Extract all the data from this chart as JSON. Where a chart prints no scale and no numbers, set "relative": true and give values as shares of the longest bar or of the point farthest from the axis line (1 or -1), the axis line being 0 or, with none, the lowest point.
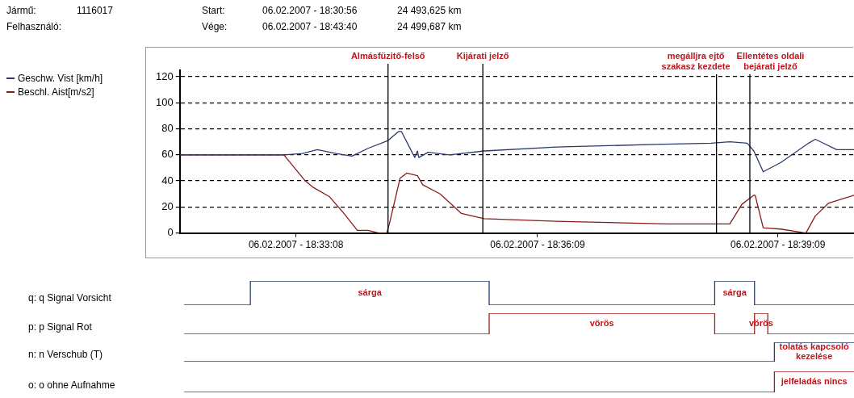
{
  "chart_data": [
    {
      "type": "line",
      "annotations": [
        "Jármű:",
        "1116017",
        "Start:",
        "06.02.2007 - 18:30:56",
        "24 493,625 km",
        "Felhasználó:",
        "Vége:",
        "06.02.2007 - 18:43:40",
        "24 499,687 km"
      ],
      "legend": "left",
      "grid": "y",
      "xlim": [
        "2007-02-06T18:31:41",
        "2007-02-06T18:40:06"
      ],
      "xticks": [
        {
          "value": "2007-02-06T18:33:08",
          "label": "06.02.2007 - 18:33:08"
        },
        {
          "value": "2007-02-06T18:36:09",
          "label": "06.02.2007 - 18:36:09"
        },
        {
          "value": "2007-02-06T18:39:09",
          "label": "06.02.2007 - 18:39:09"
        }
      ],
      "ylim": [
        0,
        125
      ],
      "yticks": [
        0,
        20,
        40,
        60,
        80,
        100,
        120
      ],
      "series": [
        {
          "name": "Geschw. Vist [km/h]",
          "color": "#2b3a6b",
          "x": [
            "2007-02-06T18:31:41",
            "2007-02-06T18:32:59",
            "2007-02-06T18:33:13",
            "2007-02-06T18:33:24",
            "2007-02-06T18:33:38",
            "2007-02-06T18:33:50",
            "2007-02-06T18:34:02",
            "2007-02-06T18:34:17",
            "2007-02-06T18:34:25",
            "2007-02-06T18:34:27",
            "2007-02-06T18:34:33",
            "2007-02-06T18:34:37",
            "2007-02-06T18:34:39",
            "2007-02-06T18:34:40",
            "2007-02-06T18:34:47",
            "2007-02-06T18:35:03",
            "2007-02-06T18:35:29",
            "2007-02-06T18:36:23",
            "2007-02-06T18:37:37",
            "2007-02-06T18:38:19",
            "2007-02-06T18:38:33",
            "2007-02-06T18:38:46",
            "2007-02-06T18:38:51",
            "2007-02-06T18:38:58",
            "2007-02-06T18:39:11",
            "2007-02-06T18:39:32",
            "2007-02-06T18:39:37",
            "2007-02-06T18:39:53",
            "2007-02-06T18:40:06"
          ],
          "values": [
            60,
            60,
            61,
            64,
            61,
            59,
            65,
            71,
            78,
            78,
            66,
            58,
            63,
            58,
            62,
            60,
            63,
            66,
            68,
            69,
            70,
            69,
            63,
            47,
            54,
            69,
            72,
            64,
            64
          ]
        },
        {
          "name": "Beschl. Aist[m/s2]",
          "color": "#8b1a1a",
          "x": [
            "2007-02-06T18:31:41",
            "2007-02-06T18:32:59",
            "2007-02-06T18:33:15",
            "2007-02-06T18:33:21",
            "2007-02-06T18:33:33",
            "2007-02-06T18:33:44",
            "2007-02-06T18:33:54",
            "2007-02-06T18:34:02",
            "2007-02-06T18:34:10",
            "2007-02-06T18:34:16",
            "2007-02-06T18:34:18",
            "2007-02-06T18:34:26",
            "2007-02-06T18:34:31",
            "2007-02-06T18:34:39",
            "2007-02-06T18:34:43",
            "2007-02-06T18:34:56",
            "2007-02-06T18:35:12",
            "2007-02-06T18:35:29",
            "2007-02-06T18:36:23",
            "2007-02-06T18:37:47",
            "2007-02-06T18:38:33",
            "2007-02-06T18:38:42",
            "2007-02-06T18:38:51",
            "2007-02-06T18:38:52",
            "2007-02-06T18:38:58",
            "2007-02-06T18:39:11",
            "2007-02-06T18:39:30",
            "2007-02-06T18:39:37",
            "2007-02-06T18:39:47",
            "2007-02-06T18:40:06"
          ],
          "values": [
            60,
            60,
            40,
            35,
            28,
            15,
            2,
            2,
            0,
            0,
            7,
            42,
            46,
            44,
            37,
            30,
            15,
            11,
            9,
            7,
            7,
            22,
            29,
            29,
            4,
            3,
            0,
            13,
            23,
            29
          ]
        }
      ],
      "ref_lines": [
        {
          "axis": "x",
          "value": "2007-02-06T18:34:17",
          "label": "Almásfüzitő-felső",
          "color": "#000000"
        },
        {
          "axis": "x",
          "value": "2007-02-06T18:35:28",
          "label": "Kijárati jelző",
          "color": "#000000"
        },
        {
          "axis": "x",
          "value": "2007-02-06T18:38:23",
          "label": "megálljra ejtő szakasz kezdete",
          "color": "#000000"
        },
        {
          "axis": "x",
          "value": "2007-02-06T18:38:48",
          "label": "Ellentétes oldali bejárati jelző",
          "color": "#000000"
        }
      ]
    },
    {
      "type": "step",
      "ylabel": "q: q Signal Vorsicht",
      "relative": true,
      "categories": [
        null,
        null,
        null,
        null,
        null,
        null,
        null,
        null,
        null,
        null,
        null,
        null,
        null,
        null,
        null,
        null,
        null,
        null,
        null,
        null,
        null,
        null,
        null,
        null,
        null,
        null,
        null,
        null,
        null,
        null,
        null,
        null,
        null,
        null,
        null,
        null,
        null,
        null,
        null,
        null,
        null,
        null,
        null,
        null,
        null,
        null,
        null,
        null,
        null,
        null,
        null,
        null,
        null,
        null,
        null,
        null,
        null,
        null,
        null,
        null,
        null,
        null,
        null,
        null,
        null,
        null,
        null,
        null,
        null,
        null,
        null,
        null,
        null,
        null,
        null,
        null,
        null,
        null,
        null,
        null,
        null,
        null,
        null,
        null,
        null,
        null,
        null,
        null,
        null,
        null,
        null,
        null,
        null,
        null,
        null,
        null,
        null,
        null,
        null,
        null,
        null,
        null
      ],
      "series": [
        {
          "color": "#2a3c6e",
          "values": [
            0,
            0,
            0,
            0,
            0,
            0,
            0,
            0,
            0,
            0,
            1,
            1,
            1,
            1,
            1,
            1,
            1,
            1,
            1,
            1,
            1,
            1,
            1,
            1,
            1,
            1,
            1,
            1,
            1,
            1,
            1,
            1,
            1,
            1,
            1,
            1,
            1,
            1,
            1,
            1,
            1,
            1,
            1,
            1,
            1,
            1,
            0,
            0,
            0,
            0,
            0,
            0,
            0,
            0,
            0,
            0,
            0,
            0,
            0,
            0,
            0,
            0,
            0,
            0,
            0,
            0,
            0,
            0,
            0,
            0,
            0,
            0,
            0,
            0,
            0,
            0,
            0,
            0,
            0,
            0,
            1,
            1,
            1,
            1,
            1,
            1,
            0,
            0,
            0,
            0,
            0,
            0,
            0,
            0,
            0,
            0,
            0,
            0,
            0,
            0,
            0,
            0
          ]
        }
      ],
      "annotations": [
        "sárga",
        "sárga"
      ]
    },
    {
      "type": "step",
      "ylabel": "p: p Signal Rot",
      "relative": true,
      "categories": [
        null,
        null,
        null,
        null,
        null,
        null,
        null,
        null,
        null,
        null,
        null,
        null,
        null,
        null,
        null,
        null,
        null,
        null,
        null,
        null,
        null,
        null,
        null,
        null,
        null,
        null,
        null,
        null,
        null,
        null,
        null,
        null,
        null,
        null,
        null,
        null,
        null,
        null,
        null,
        null,
        null,
        null,
        null,
        null,
        null,
        null,
        null,
        null,
        null,
        null,
        null,
        null,
        null,
        null,
        null,
        null,
        null,
        null,
        null,
        null,
        null,
        null,
        null,
        null,
        null,
        null,
        null,
        null,
        null,
        null,
        null,
        null,
        null,
        null,
        null,
        null,
        null,
        null,
        null,
        null,
        null,
        null,
        null,
        null,
        null,
        null,
        null,
        null,
        null,
        null,
        null,
        null,
        null,
        null,
        null,
        null,
        null,
        null,
        null,
        null,
        null,
        null
      ],
      "series": [
        {
          "color": "#a02020",
          "values": [
            0,
            0,
            0,
            0,
            0,
            0,
            0,
            0,
            0,
            0,
            0,
            0,
            0,
            0,
            0,
            0,
            0,
            0,
            0,
            0,
            0,
            0,
            0,
            0,
            0,
            0,
            0,
            0,
            0,
            0,
            0,
            0,
            0,
            0,
            0,
            0,
            0,
            0,
            0,
            0,
            0,
            0,
            0,
            0,
            0,
            0,
            1,
            1,
            1,
            1,
            1,
            1,
            1,
            1,
            1,
            1,
            1,
            1,
            1,
            1,
            1,
            1,
            1,
            1,
            1,
            1,
            1,
            1,
            1,
            1,
            1,
            1,
            1,
            1,
            1,
            1,
            1,
            1,
            1,
            1,
            0,
            0,
            0,
            0,
            0,
            0,
            1,
            1,
            0,
            0,
            0,
            0,
            0,
            0,
            0,
            0,
            0,
            0,
            0,
            0,
            0,
            0
          ]
        }
      ],
      "annotations": [
        "vörös",
        "vörös"
      ]
    },
    {
      "type": "step",
      "ylabel": "n: n Verschub (T)",
      "relative": true,
      "categories": [
        null,
        null,
        null,
        null,
        null,
        null,
        null,
        null,
        null,
        null,
        null,
        null,
        null,
        null,
        null,
        null,
        null,
        null,
        null,
        null,
        null,
        null,
        null,
        null,
        null,
        null,
        null,
        null,
        null,
        null,
        null,
        null,
        null,
        null,
        null,
        null,
        null,
        null,
        null,
        null,
        null,
        null,
        null,
        null,
        null,
        null,
        null,
        null,
        null,
        null,
        null,
        null,
        null,
        null,
        null,
        null,
        null,
        null,
        null,
        null,
        null,
        null,
        null,
        null,
        null,
        null,
        null,
        null,
        null,
        null,
        null,
        null,
        null,
        null,
        null,
        null,
        null,
        null,
        null,
        null,
        null,
        null,
        null,
        null,
        null,
        null,
        null,
        null,
        null,
        null,
        null,
        null,
        null,
        null,
        null,
        null,
        null,
        null,
        null,
        null,
        null,
        null
      ],
      "series": [
        {
          "color": "#2a3c6e",
          "values": [
            0,
            0,
            0,
            0,
            0,
            0,
            0,
            0,
            0,
            0,
            0,
            0,
            0,
            0,
            0,
            0,
            0,
            0,
            0,
            0,
            0,
            0,
            0,
            0,
            0,
            0,
            0,
            0,
            0,
            0,
            0,
            0,
            0,
            0,
            0,
            0,
            0,
            0,
            0,
            0,
            0,
            0,
            0,
            0,
            0,
            0,
            0,
            0,
            0,
            0,
            0,
            0,
            0,
            0,
            0,
            0,
            0,
            0,
            0,
            0,
            0,
            0,
            0,
            0,
            0,
            0,
            0,
            0,
            0,
            0,
            0,
            0,
            0,
            0,
            0,
            0,
            0,
            0,
            0,
            0,
            0,
            0,
            0,
            0,
            0,
            0,
            0,
            0,
            0,
            1,
            1,
            1,
            1,
            1,
            1,
            1,
            1,
            1,
            1,
            1,
            1,
            1
          ]
        }
      ],
      "annotations": [
        "tolatás kapcsoló kezelése"
      ]
    },
    {
      "type": "step",
      "ylabel": "o: o ohne Aufnahme",
      "relative": true,
      "categories": [
        null,
        null,
        null,
        null,
        null,
        null,
        null,
        null,
        null,
        null,
        null,
        null,
        null,
        null,
        null,
        null,
        null,
        null,
        null,
        null,
        null,
        null,
        null,
        null,
        null,
        null,
        null,
        null,
        null,
        null,
        null,
        null,
        null,
        null,
        null,
        null,
        null,
        null,
        null,
        null,
        null,
        null,
        null,
        null,
        null,
        null,
        null,
        null,
        null,
        null,
        null,
        null,
        null,
        null,
        null,
        null,
        null,
        null,
        null,
        null,
        null,
        null,
        null,
        null,
        null,
        null,
        null,
        null,
        null,
        null,
        null,
        null,
        null,
        null,
        null,
        null,
        null,
        null,
        null,
        null,
        null,
        null,
        null,
        null,
        null,
        null,
        null,
        null,
        null,
        null,
        null,
        null,
        null,
        null,
        null,
        null,
        null,
        null,
        null,
        null,
        null,
        null
      ],
      "series": [
        {
          "color": "#a02020",
          "values": [
            0,
            0,
            0,
            0,
            0,
            0,
            0,
            0,
            0,
            0,
            0,
            0,
            0,
            0,
            0,
            0,
            0,
            0,
            0,
            0,
            0,
            0,
            0,
            0,
            0,
            0,
            0,
            0,
            0,
            0,
            0,
            0,
            0,
            0,
            0,
            0,
            0,
            0,
            0,
            0,
            0,
            0,
            0,
            0,
            0,
            0,
            0,
            0,
            0,
            0,
            0,
            0,
            0,
            0,
            0,
            0,
            0,
            0,
            0,
            0,
            0,
            0,
            0,
            0,
            0,
            0,
            0,
            0,
            0,
            0,
            0,
            0,
            0,
            0,
            0,
            0,
            0,
            0,
            0,
            0,
            0,
            0,
            0,
            0,
            0,
            0,
            0,
            0,
            0,
            1,
            1,
            1,
            1,
            1,
            1,
            1,
            1,
            1,
            1,
            1,
            1,
            1
          ]
        }
      ],
      "annotations": [
        "jelfeladás nincs"
      ]
    }
  ]
}
